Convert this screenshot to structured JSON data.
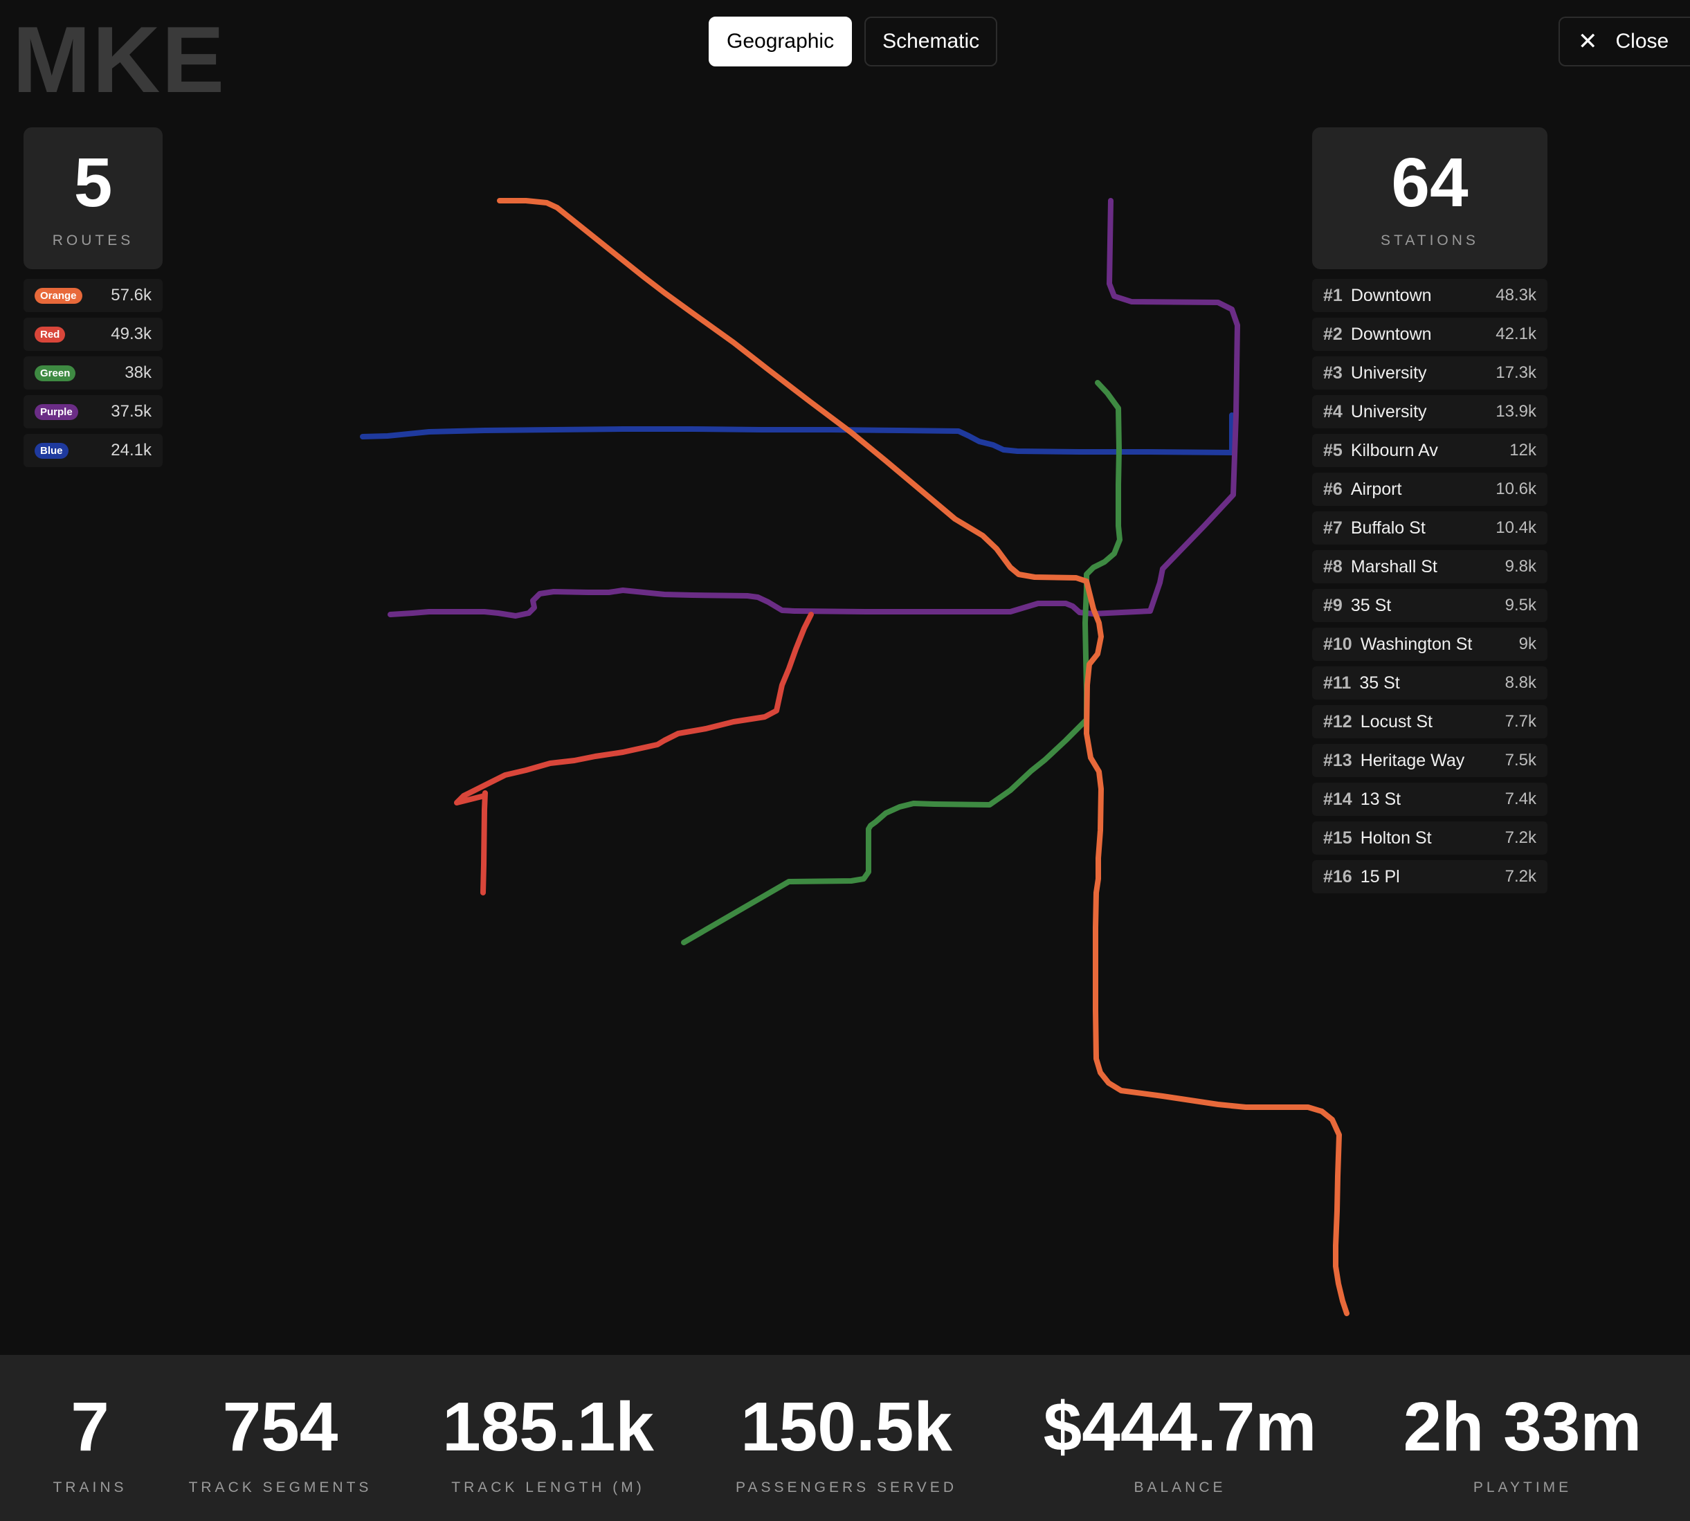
{
  "city": {
    "code": "MKE"
  },
  "view_toggle": {
    "geographic": "Geographic",
    "schematic": "Schematic",
    "active": "geographic"
  },
  "close_label": "Close",
  "routes_summary": {
    "count": "5",
    "label": "ROUTES"
  },
  "stations_summary": {
    "count": "64",
    "label": "STATIONS"
  },
  "routes": [
    {
      "name": "Orange",
      "value": "57.6k",
      "color": "#e8693a"
    },
    {
      "name": "Red",
      "value": "49.3k",
      "color": "#d9463a"
    },
    {
      "name": "Green",
      "value": "38k",
      "color": "#3e8a42"
    },
    {
      "name": "Purple",
      "value": "37.5k",
      "color": "#6b2d86"
    },
    {
      "name": "Blue",
      "value": "24.1k",
      "color": "#1f3a9e"
    }
  ],
  "stations": [
    {
      "rank": "#1",
      "name": "Downtown",
      "value": "48.3k"
    },
    {
      "rank": "#2",
      "name": "Downtown",
      "value": "42.1k"
    },
    {
      "rank": "#3",
      "name": "University",
      "value": "17.3k"
    },
    {
      "rank": "#4",
      "name": "University",
      "value": "13.9k"
    },
    {
      "rank": "#5",
      "name": "Kilbourn Av",
      "value": "12k"
    },
    {
      "rank": "#6",
      "name": "Airport",
      "value": "10.6k"
    },
    {
      "rank": "#7",
      "name": "Buffalo St",
      "value": "10.4k"
    },
    {
      "rank": "#8",
      "name": "Marshall St",
      "value": "9.8k"
    },
    {
      "rank": "#9",
      "name": "35 St",
      "value": "9.5k"
    },
    {
      "rank": "#10",
      "name": "Washington St",
      "value": "9k"
    },
    {
      "rank": "#11",
      "name": "35 St",
      "value": "8.8k"
    },
    {
      "rank": "#12",
      "name": "Locust St",
      "value": "7.7k"
    },
    {
      "rank": "#13",
      "name": "Heritage Way",
      "value": "7.5k"
    },
    {
      "rank": "#14",
      "name": "13 St",
      "value": "7.4k"
    },
    {
      "rank": "#15",
      "name": "Holton St",
      "value": "7.2k"
    },
    {
      "rank": "#16",
      "name": "15 Pl",
      "value": "7.2k"
    }
  ],
  "bottom_stats": [
    {
      "value": "7",
      "label": "TRAINS"
    },
    {
      "value": "754",
      "label": "TRACK SEGMENTS"
    },
    {
      "value": "185.1k",
      "label": "TRACK LENGTH (M)"
    },
    {
      "value": "150.5k",
      "label": "PASSENGERS SERVED"
    },
    {
      "value": "$444.7m",
      "label": "BALANCE"
    },
    {
      "value": "2h 33m",
      "label": "PLAYTIME"
    }
  ]
}
